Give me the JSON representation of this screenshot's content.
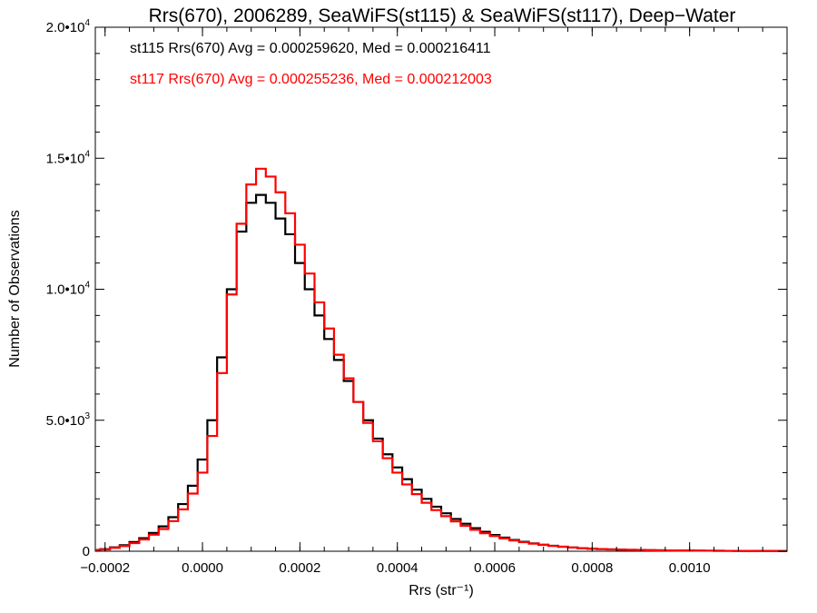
{
  "chart_data": {
    "type": "histogram",
    "title": "Rrs(670), 2006289, SeaWiFS(st115) & SeaWiFS(st117), Deep−Water",
    "xlabel": "Rrs (str⁻¹)",
    "ylabel": "Number of Observations",
    "xlim": [
      -0.00022,
      0.0012
    ],
    "ylim": [
      0,
      20000
    ],
    "xticks": [
      {
        "value": -0.0002,
        "label": "−0.0002"
      },
      {
        "value": 0.0,
        "label": "0.0000"
      },
      {
        "value": 0.0002,
        "label": "0.0002"
      },
      {
        "value": 0.0004,
        "label": "0.0004"
      },
      {
        "value": 0.0006,
        "label": "0.0006"
      },
      {
        "value": 0.0008,
        "label": "0.0008"
      },
      {
        "value": 0.001,
        "label": "0.0010"
      }
    ],
    "yticks": [
      {
        "value": 0,
        "mant": "0",
        "exp": ""
      },
      {
        "value": 5000,
        "mant": "5.0•10",
        "exp": "3"
      },
      {
        "value": 10000,
        "mant": "1.0•10",
        "exp": "4"
      },
      {
        "value": 15000,
        "mant": "1.5•10",
        "exp": "4"
      },
      {
        "value": 20000,
        "mant": "2.0•10",
        "exp": "4"
      }
    ],
    "grid": false,
    "legend": "top-left",
    "series": [
      {
        "name": "st115 Rrs(670) Avg = 0.000259620, Med = 0.000216411",
        "color": "#000000",
        "x": [
          -0.00022,
          -0.0002,
          -0.00018,
          -0.00016,
          -0.00014,
          -0.00012,
          -0.0001,
          -8e-05,
          -6e-05,
          -4e-05,
          -2e-05,
          0.0,
          2e-05,
          4e-05,
          6e-05,
          8e-05,
          0.0001,
          0.00012,
          0.00014,
          0.00016,
          0.00018,
          0.0002,
          0.00022,
          0.00024,
          0.00026,
          0.00028,
          0.0003,
          0.00032,
          0.00034,
          0.00036,
          0.00038,
          0.0004,
          0.00042,
          0.00044,
          0.00046,
          0.00048,
          0.0005,
          0.00052,
          0.00054,
          0.00056,
          0.00058,
          0.0006,
          0.00062,
          0.00064,
          0.00066,
          0.00068,
          0.0007,
          0.00072,
          0.00074,
          0.00076,
          0.00078,
          0.0008,
          0.00082,
          0.00084,
          0.00086,
          0.00088,
          0.0009,
          0.00092,
          0.00094,
          0.00096,
          0.00098,
          0.001,
          0.00102,
          0.00104,
          0.00106,
          0.00108,
          0.0011,
          0.00112,
          0.00114,
          0.00116,
          0.00118,
          0.0012
        ],
        "y": [
          50,
          80,
          150,
          230,
          350,
          500,
          700,
          950,
          1300,
          1800,
          2500,
          3500,
          5000,
          7400,
          10000,
          12200,
          13300,
          13600,
          13300,
          12700,
          12100,
          11000,
          10000,
          9000,
          8100,
          7300,
          6500,
          5700,
          5000,
          4300,
          3700,
          3200,
          2750,
          2350,
          2000,
          1700,
          1450,
          1230,
          1050,
          880,
          740,
          620,
          520,
          430,
          360,
          300,
          250,
          210,
          175,
          145,
          120,
          100,
          85,
          72,
          62,
          54,
          47,
          41,
          36,
          32,
          28,
          25,
          22,
          20,
          18,
          16,
          14,
          13,
          12,
          11,
          10,
          9
        ]
      },
      {
        "name": "st117 Rrs(670) Avg = 0.000255236, Med = 0.000212003",
        "color": "#ff0000",
        "x": [
          -0.00022,
          -0.0002,
          -0.00018,
          -0.00016,
          -0.00014,
          -0.00012,
          -0.0001,
          -8e-05,
          -6e-05,
          -4e-05,
          -2e-05,
          0.0,
          2e-05,
          4e-05,
          6e-05,
          8e-05,
          0.0001,
          0.00012,
          0.00014,
          0.00016,
          0.00018,
          0.0002,
          0.00022,
          0.00024,
          0.00026,
          0.00028,
          0.0003,
          0.00032,
          0.00034,
          0.00036,
          0.00038,
          0.0004,
          0.00042,
          0.00044,
          0.00046,
          0.00048,
          0.0005,
          0.00052,
          0.00054,
          0.00056,
          0.00058,
          0.0006,
          0.00062,
          0.00064,
          0.00066,
          0.00068,
          0.0007,
          0.00072,
          0.00074,
          0.00076,
          0.00078,
          0.0008,
          0.00082,
          0.00084,
          0.00086,
          0.00088,
          0.0009,
          0.00092,
          0.00094,
          0.00096,
          0.00098,
          0.001,
          0.00102,
          0.00104,
          0.00106,
          0.00108,
          0.0011,
          0.00112,
          0.00114,
          0.00116,
          0.00118,
          0.0012
        ],
        "y": [
          40,
          70,
          130,
          200,
          310,
          450,
          630,
          850,
          1150,
          1600,
          2200,
          3000,
          4400,
          6800,
          9800,
          12500,
          14000,
          14600,
          14300,
          13700,
          12900,
          11700,
          10600,
          9500,
          8500,
          7500,
          6600,
          5700,
          4900,
          4200,
          3550,
          3000,
          2550,
          2180,
          1850,
          1570,
          1340,
          1140,
          970,
          820,
          690,
          580,
          490,
          410,
          345,
          290,
          242,
          202,
          168,
          140,
          116,
          96,
          82,
          70,
          60,
          52,
          45,
          39,
          34,
          30,
          27,
          24,
          21,
          19,
          17,
          15,
          14,
          12,
          11,
          10,
          9,
          8
        ]
      }
    ]
  }
}
